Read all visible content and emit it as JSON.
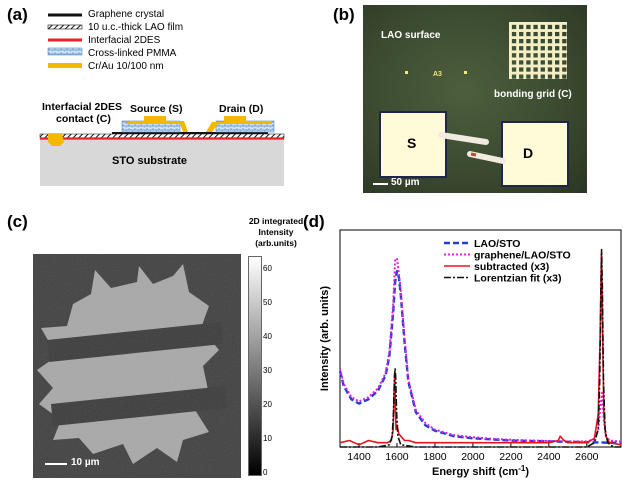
{
  "panels": {
    "a": {
      "label": "(a)",
      "legend": [
        {
          "text": "Graphene crystal",
          "swatch": "graphene",
          "color": "#111111"
        },
        {
          "text": "10 u.c.-thick LAO film",
          "swatch": "hatch",
          "color": "#333333"
        },
        {
          "text": "Interfacial 2DES",
          "swatch": "line",
          "color": "#e8232a"
        },
        {
          "text": "Cross-linked PMMA",
          "swatch": "pmma",
          "color": "#9fc3e6"
        },
        {
          "text": "Cr/Au 10/100 nm",
          "swatch": "metal",
          "color": "#f5b800"
        }
      ],
      "labels": {
        "contact": "Interfacial 2DES",
        "contact2": "contact (C)",
        "source": "Source (S)",
        "drain": "Drain (D)",
        "substrate": "STO substrate"
      }
    },
    "b": {
      "label": "(b)",
      "surface": "LAO surface",
      "marker": "A3",
      "grid": "bonding grid (C)",
      "pad_s": "S",
      "pad_d": "D",
      "scale": "50 µm"
    },
    "c": {
      "label": "(c)",
      "colorbar_title": [
        "2D integrated",
        "Intensity",
        "(arb.units)"
      ],
      "colorbar_ticks": [
        "60",
        "50",
        "40",
        "30",
        "20",
        "10",
        "0"
      ],
      "scale": "10 µm"
    },
    "d": {
      "label": "(d)"
    }
  },
  "chart_data": {
    "type": "line",
    "title": "",
    "xlabel": "Energy shift (cm",
    "xlabel_sup": "-1",
    "xlabel_end": ")",
    "ylabel": "Intensity (arb. units)",
    "xlim": [
      1300,
      2780
    ],
    "ylim": [
      0,
      1.0
    ],
    "xticks": [
      1400,
      1600,
      1800,
      2000,
      2200,
      2400,
      2600
    ],
    "legend_position": "top-right",
    "series": [
      {
        "name": "LAO/STO",
        "color": "#1f3fd6",
        "dash": "6,3",
        "width": 2.4,
        "x": [
          1300,
          1320,
          1360,
          1400,
          1450,
          1500,
          1540,
          1560,
          1580,
          1590,
          1600,
          1610,
          1620,
          1640,
          1660,
          1700,
          1750,
          1800,
          1900,
          2000,
          2100,
          2200,
          2300,
          2400,
          2500,
          2600,
          2660,
          2680,
          2700,
          2780
        ],
        "y": [
          0.35,
          0.28,
          0.22,
          0.2,
          0.22,
          0.26,
          0.33,
          0.42,
          0.62,
          0.76,
          0.81,
          0.78,
          0.7,
          0.48,
          0.3,
          0.16,
          0.1,
          0.075,
          0.05,
          0.04,
          0.035,
          0.03,
          0.028,
          0.026,
          0.024,
          0.022,
          0.021,
          0.021,
          0.02,
          0.02
        ]
      },
      {
        "name": "graphene/LAO/STO",
        "color": "#e020e0",
        "dash": "2,2",
        "width": 2.0,
        "x": [
          1300,
          1320,
          1360,
          1400,
          1450,
          1500,
          1540,
          1560,
          1580,
          1590,
          1600,
          1610,
          1620,
          1640,
          1660,
          1700,
          1750,
          1800,
          1900,
          2000,
          2100,
          2200,
          2300,
          2400,
          2500,
          2600,
          2640,
          2660,
          2670,
          2680,
          2690,
          2700,
          2720,
          2780
        ],
        "y": [
          0.36,
          0.29,
          0.23,
          0.21,
          0.23,
          0.27,
          0.34,
          0.44,
          0.66,
          0.86,
          0.87,
          0.8,
          0.72,
          0.5,
          0.31,
          0.17,
          0.11,
          0.08,
          0.055,
          0.045,
          0.038,
          0.033,
          0.03,
          0.028,
          0.026,
          0.026,
          0.035,
          0.08,
          0.17,
          0.25,
          0.12,
          0.05,
          0.03,
          0.025
        ]
      },
      {
        "name": "subtracted (x3)",
        "color": "#e8141c",
        "dash": "",
        "width": 1.6,
        "x": [
          1300,
          1350,
          1400,
          1450,
          1500,
          1550,
          1570,
          1580,
          1585,
          1588,
          1590,
          1595,
          1600,
          1610,
          1620,
          1640,
          1660,
          1700,
          1800,
          1900,
          2000,
          2100,
          2200,
          2300,
          2400,
          2450,
          2460,
          2480,
          2500,
          2600,
          2640,
          2660,
          2670,
          2677,
          2680,
          2685,
          2690,
          2700,
          2720,
          2780
        ],
        "y": [
          0.02,
          0.03,
          0.01,
          0.03,
          0.02,
          0.02,
          0.03,
          0.08,
          0.25,
          0.33,
          0.25,
          0.08,
          0.1,
          0.06,
          0.05,
          0.03,
          0.03,
          0.02,
          0.02,
          0.02,
          0.02,
          0.02,
          0.02,
          0.02,
          0.02,
          0.03,
          0.05,
          0.03,
          0.02,
          0.02,
          0.04,
          0.15,
          0.5,
          0.89,
          0.75,
          0.4,
          0.15,
          0.05,
          0.02,
          0.01
        ]
      },
      {
        "name": "Lorentzian fit (x3)",
        "color": "#111111",
        "dash": "7,2,2,2",
        "width": 1.6,
        "x": [
          1300,
          1500,
          1560,
          1575,
          1582,
          1587,
          1590,
          1593,
          1598,
          1605,
          1620,
          1700,
          2000,
          2400,
          2600,
          2640,
          2660,
          2668,
          2674,
          2678,
          2682,
          2688,
          2696,
          2710,
          2740,
          2780
        ],
        "y": [
          0.0,
          0.0,
          0.01,
          0.05,
          0.16,
          0.33,
          0.36,
          0.33,
          0.16,
          0.05,
          0.01,
          0.0,
          0.0,
          0.0,
          0.0,
          0.02,
          0.08,
          0.3,
          0.72,
          0.91,
          0.72,
          0.3,
          0.08,
          0.02,
          0.0,
          0.0
        ]
      }
    ]
  }
}
